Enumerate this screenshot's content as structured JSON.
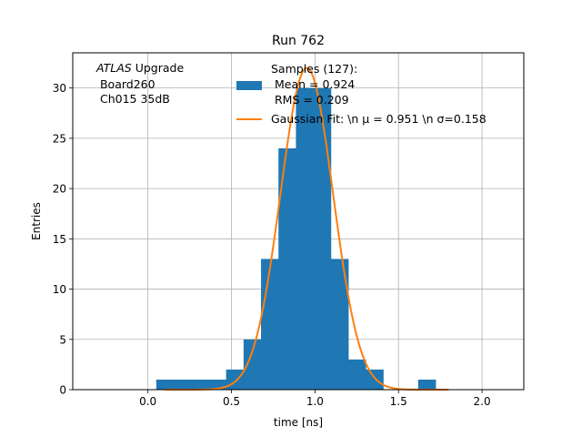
{
  "chart_data": {
    "type": "bar",
    "title": "Run 762",
    "xlabel": "time [ns]",
    "ylabel": "Entries",
    "xlim": [
      -0.45,
      2.25
    ],
    "ylim": [
      0,
      33.5
    ],
    "grid": true,
    "x_ticks": [
      0.0,
      0.5,
      1.0,
      1.5,
      2.0
    ],
    "x_tick_labels": [
      "0.0",
      "0.5",
      "1.0",
      "1.5",
      "2.0"
    ],
    "y_ticks": [
      0,
      5,
      10,
      15,
      20,
      25,
      30
    ],
    "y_tick_labels": [
      "0",
      "5",
      "10",
      "15",
      "20",
      "25",
      "30"
    ],
    "bin_width": 0.1045,
    "histogram": {
      "name": "Samples (127):\n Mean = 0.924\n RMS = 0.209",
      "color": "#1f77b4",
      "bin_lefts": [
        0.05,
        0.1545,
        0.259,
        0.3635,
        0.468,
        0.5725,
        0.677,
        0.7815,
        0.886,
        0.9905,
        1.095,
        1.1995,
        1.304,
        1.4085,
        1.513,
        1.6175
      ],
      "counts": [
        1,
        1,
        1,
        1,
        2,
        5,
        13,
        24,
        30,
        30,
        13,
        3,
        2,
        0,
        0,
        1
      ]
    },
    "fit": {
      "name": "Gaussian Fit: \\n $\\mu$ = 0.951 \\n $\\sigma$=0.158",
      "label_plain": "Gaussian Fit: \\n μ = 0.951 \\n σ=0.158",
      "color": "#ff7f0e",
      "mu": 0.951,
      "sigma": 0.158,
      "amplitude": 32,
      "x_range": [
        0.1,
        1.8
      ]
    },
    "annotation": {
      "italic": "ATLAS",
      "rest": " Upgrade",
      "line2": " Board260",
      "line3": " Ch015 35dB"
    },
    "legend": {
      "placement": "top-center",
      "hist_lines": [
        "Samples (127):",
        " Mean = 0.924",
        " RMS = 0.209"
      ],
      "fit_line": "Gaussian Fit: \\n μ = 0.951 \\n σ=0.158"
    }
  }
}
